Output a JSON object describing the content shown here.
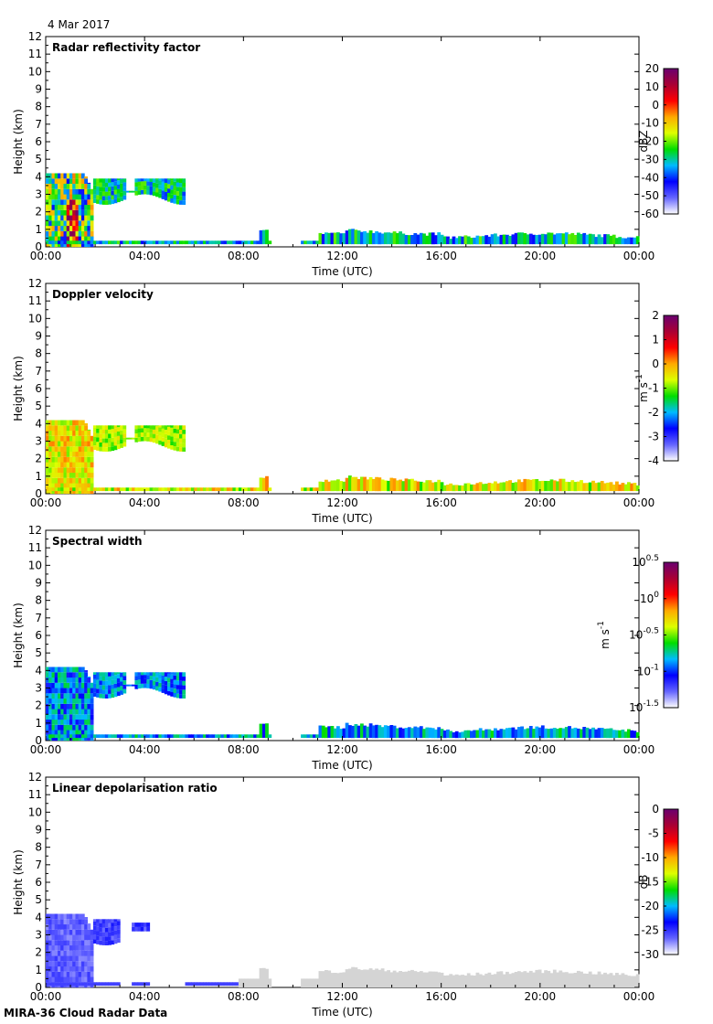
{
  "date": "4 Mar 2017",
  "footer": "MIRA-36 Cloud Radar Data",
  "colors": {
    "colormap": [
      "#ffffff",
      "#6464ff",
      "#0000ff",
      "#00bbff",
      "#00dd00",
      "#ddff00",
      "#ffaa00",
      "#ff0000",
      "#aa0033",
      "#6a0070"
    ],
    "gray": "#d4d4d4"
  },
  "chart_data": [
    {
      "type": "heatmap",
      "title": "Radar reflectivity factor",
      "xlabel": "Time (UTC)",
      "ylabel": "Height (km)",
      "x_ticks": [
        "00:00",
        "04:00",
        "08:00",
        "12:00",
        "16:00",
        "20:00",
        "00:00"
      ],
      "y_ticks": [
        "0",
        "1",
        "2",
        "3",
        "4",
        "5",
        "6",
        "7",
        "8",
        "9",
        "10",
        "11",
        "12"
      ],
      "ylim": [
        0,
        12
      ],
      "colorbar": {
        "label": "dBZ",
        "ticks": [
          "20",
          "10",
          "0",
          "-10",
          "-20",
          "-30",
          "-40",
          "-50",
          "-60"
        ],
        "range": [
          -60,
          20
        ]
      },
      "echoes": [
        {
          "period": "00:00-01:45",
          "height_km": [
            0,
            4.2
          ],
          "range": "-45 to 5 dBZ"
        },
        {
          "period": "01:45-05:30",
          "height_km": [
            2.6,
            4.0
          ],
          "range": "-50 to -25 dBZ"
        },
        {
          "period": "00:00-24:00",
          "height_km": [
            0.2,
            1.0
          ],
          "range": "-55 to -25 dBZ"
        }
      ]
    },
    {
      "type": "heatmap",
      "title": "Doppler velocity",
      "xlabel": "Time (UTC)",
      "ylabel": "Height (km)",
      "x_ticks": [
        "00:00",
        "04:00",
        "08:00",
        "12:00",
        "16:00",
        "20:00",
        "00:00"
      ],
      "y_ticks": [
        "0",
        "1",
        "2",
        "3",
        "4",
        "5",
        "6",
        "7",
        "8",
        "9",
        "10",
        "11",
        "12"
      ],
      "ylim": [
        0,
        12
      ],
      "colorbar": {
        "label": "m s",
        "label_sup": "-1",
        "ticks": [
          "2",
          "1",
          "0",
          "-1",
          "-2",
          "-3",
          "-4"
        ],
        "range": [
          -4,
          2
        ]
      },
      "echoes": [
        {
          "period": "00:00-05:30",
          "height_km": [
            0,
            4.2
          ],
          "range": "-1.5 to -0.5 m/s"
        },
        {
          "period": "00:00-24:00",
          "height_km": [
            0.2,
            1.0
          ],
          "range": "-1 to 0.5 m/s"
        }
      ]
    },
    {
      "type": "heatmap",
      "title": "Spectral width",
      "xlabel": "Time (UTC)",
      "ylabel": "Height (km)",
      "x_ticks": [
        "00:00",
        "04:00",
        "08:00",
        "12:00",
        "16:00",
        "20:00",
        "00:00"
      ],
      "y_ticks": [
        "0",
        "1",
        "2",
        "3",
        "4",
        "5",
        "6",
        "7",
        "8",
        "9",
        "10",
        "11",
        "12"
      ],
      "ylim": [
        0,
        12
      ],
      "colorbar": {
        "label": "m s",
        "label_sup": "-1",
        "ticks": [
          {
            "base": "10",
            "exp": "0.5"
          },
          {
            "base": "10",
            "exp": "0"
          },
          {
            "base": "10",
            "exp": "-0.5"
          },
          {
            "base": "10",
            "exp": "-1"
          },
          {
            "base": "10",
            "exp": "-1.5"
          }
        ],
        "range": [
          -1.5,
          0.5
        ],
        "scale": "log"
      },
      "echoes": [
        {
          "period": "00:00-05:30",
          "height_km": [
            0,
            4.2
          ],
          "range": "10^-1.2 to 10^-0.7 m/s"
        },
        {
          "period": "00:00-24:00",
          "height_km": [
            0.2,
            1.0
          ],
          "range": "10^-1 to 10^-0.5 m/s"
        }
      ]
    },
    {
      "type": "heatmap",
      "title": "Linear depolarisation ratio",
      "xlabel": "Time (UTC)",
      "ylabel": "Height (km)",
      "x_ticks": [
        "00:00",
        "04:00",
        "08:00",
        "12:00",
        "16:00",
        "20:00",
        "00:00"
      ],
      "y_ticks": [
        "0",
        "1",
        "2",
        "3",
        "4",
        "5",
        "6",
        "7",
        "8",
        "9",
        "10",
        "11",
        "12"
      ],
      "ylim": [
        0,
        12
      ],
      "colorbar": {
        "label": "dB",
        "ticks": [
          "0",
          "-5",
          "-10",
          "-15",
          "-20",
          "-25",
          "-30"
        ],
        "range": [
          -30,
          0
        ]
      },
      "echoes": [
        {
          "period": "00:00-03:00",
          "height_km": [
            0,
            4.1
          ],
          "range": "-30 to -27 dB"
        },
        {
          "period": "07:00-24:00",
          "height_km": [
            0,
            1.0
          ],
          "range": "no valid data (gray)"
        }
      ]
    }
  ]
}
